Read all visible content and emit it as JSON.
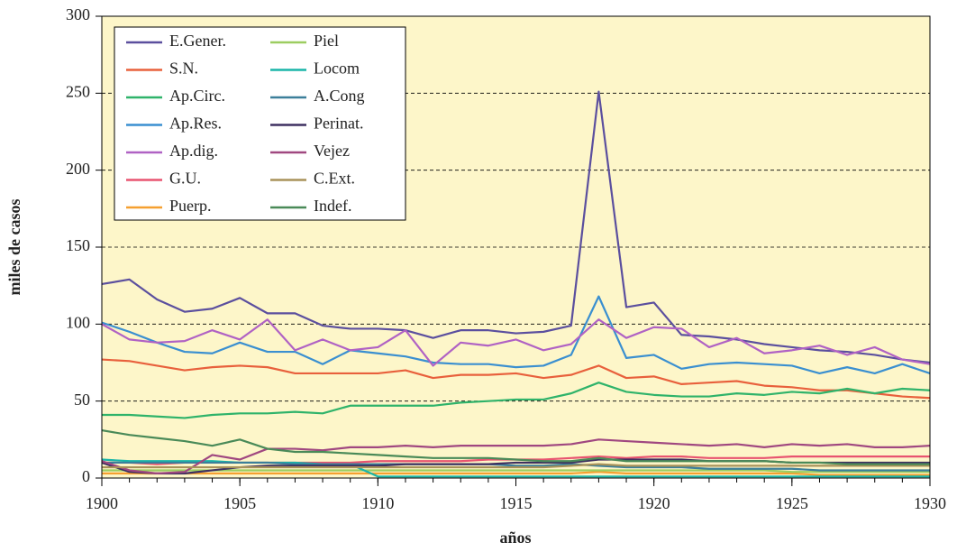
{
  "chart_data": {
    "type": "line",
    "x_label": "años",
    "y_label": "miles de casos",
    "x": [
      1900,
      1901,
      1902,
      1903,
      1904,
      1905,
      1906,
      1907,
      1908,
      1909,
      1910,
      1911,
      1912,
      1913,
      1914,
      1915,
      1916,
      1917,
      1918,
      1919,
      1920,
      1921,
      1922,
      1923,
      1924,
      1925,
      1926,
      1927,
      1928,
      1929,
      1930
    ],
    "xlim": [
      1900,
      1930
    ],
    "xticks": [
      1900,
      1905,
      1910,
      1915,
      1920,
      1925,
      1930
    ],
    "ylim": [
      0,
      300
    ],
    "yticks": [
      0,
      50,
      100,
      150,
      200,
      250,
      300
    ],
    "grid": true,
    "legend": "upper left",
    "series": [
      {
        "name": "E.Gener.",
        "color": "#5b4f9e",
        "values": [
          126,
          129,
          116,
          108,
          110,
          117,
          107,
          107,
          99,
          97,
          97,
          96,
          91,
          96,
          96,
          94,
          95,
          99,
          251,
          111,
          114,
          93,
          92,
          90,
          87,
          85,
          83,
          82,
          80,
          77,
          75
        ]
      },
      {
        "name": "S.N.",
        "color": "#e8603c",
        "values": [
          77,
          76,
          73,
          70,
          72,
          73,
          72,
          68,
          68,
          68,
          68,
          70,
          65,
          67,
          67,
          68,
          65,
          67,
          73,
          65,
          66,
          61,
          62,
          63,
          60,
          59,
          57,
          57,
          55,
          53,
          52
        ]
      },
      {
        "name": "Ap.Circ.",
        "color": "#2fb36a",
        "values": [
          41,
          41,
          40,
          39,
          41,
          42,
          42,
          43,
          42,
          47,
          47,
          47,
          47,
          49,
          50,
          51,
          51,
          55,
          62,
          56,
          54,
          53,
          53,
          55,
          54,
          56,
          55,
          58,
          55,
          58,
          57
        ]
      },
      {
        "name": "Ap.Res.",
        "color": "#3a8fd0",
        "values": [
          101,
          95,
          88,
          82,
          81,
          88,
          82,
          82,
          74,
          83,
          81,
          79,
          75,
          74,
          74,
          72,
          73,
          80,
          118,
          78,
          80,
          71,
          74,
          75,
          74,
          73,
          68,
          72,
          68,
          74,
          68
        ]
      },
      {
        "name": "Ap.dig.",
        "color": "#b062c4",
        "values": [
          100,
          90,
          88,
          89,
          96,
          90,
          103,
          83,
          90,
          83,
          85,
          96,
          73,
          88,
          86,
          90,
          83,
          87,
          103,
          91,
          98,
          97,
          85,
          91,
          81,
          83,
          86,
          80,
          85,
          77,
          74
        ]
      },
      {
        "name": "G.U.",
        "color": "#e85470",
        "values": [
          10,
          10,
          9,
          10,
          10,
          10,
          10,
          10,
          10,
          10,
          11,
          11,
          11,
          11,
          12,
          12,
          12,
          13,
          14,
          13,
          14,
          14,
          13,
          13,
          13,
          14,
          14,
          14,
          14,
          14,
          14
        ]
      },
      {
        "name": "Puerp.",
        "color": "#f5a030",
        "values": [
          3,
          3,
          3,
          3,
          3,
          3,
          3,
          3,
          3,
          3,
          3,
          3,
          3,
          3,
          3,
          3,
          3,
          3,
          4,
          3,
          3,
          3,
          3,
          3,
          3,
          3,
          2,
          2,
          2,
          2,
          2
        ]
      },
      {
        "name": "Piel",
        "color": "#9ccd60",
        "values": [
          5,
          5,
          5,
          5,
          5,
          5,
          5,
          5,
          5,
          5,
          5,
          5,
          5,
          5,
          5,
          5,
          5,
          5,
          5,
          5,
          5,
          5,
          5,
          5,
          5,
          4,
          4,
          4,
          4,
          4,
          4
        ]
      },
      {
        "name": "Locom",
        "color": "#1ab5a8",
        "values": [
          12,
          11,
          11,
          11,
          11,
          10,
          10,
          10,
          9,
          9,
          1,
          1,
          1,
          1,
          1,
          1,
          1,
          1,
          1,
          1,
          1,
          1,
          1,
          1,
          1,
          1,
          1,
          1,
          1,
          1,
          1
        ]
      },
      {
        "name": "A.Cong",
        "color": "#3c7f9a",
        "values": [
          10,
          10,
          10,
          10,
          10,
          10,
          10,
          9,
          9,
          9,
          9,
          9,
          9,
          9,
          9,
          8,
          8,
          9,
          8,
          7,
          7,
          7,
          6,
          6,
          6,
          6,
          5,
          5,
          5,
          5,
          5
        ]
      },
      {
        "name": "Perinat.",
        "color": "#3e3060",
        "values": [
          10,
          4,
          3,
          3,
          5,
          7,
          8,
          8,
          8,
          8,
          8,
          9,
          9,
          9,
          9,
          10,
          10,
          10,
          12,
          12,
          12,
          12,
          11,
          11,
          11,
          10,
          10,
          10,
          10,
          10,
          10
        ]
      },
      {
        "name": "Vejez",
        "color": "#a04880",
        "values": [
          11,
          5,
          3,
          4,
          15,
          12,
          19,
          19,
          18,
          20,
          20,
          21,
          20,
          21,
          21,
          21,
          21,
          22,
          25,
          24,
          23,
          22,
          21,
          22,
          20,
          22,
          21,
          22,
          20,
          20,
          21
        ]
      },
      {
        "name": "C.Ext.",
        "color": "#a8925a",
        "values": [
          7,
          7,
          7,
          7,
          7,
          7,
          7,
          7,
          7,
          7,
          7,
          7,
          7,
          7,
          7,
          7,
          7,
          8,
          9,
          8,
          8,
          8,
          8,
          8,
          8,
          8,
          8,
          8,
          8,
          8,
          8
        ]
      },
      {
        "name": "Indef.",
        "color": "#4a8a58",
        "values": [
          31,
          28,
          26,
          24,
          21,
          25,
          19,
          17,
          17,
          16,
          15,
          14,
          13,
          13,
          13,
          12,
          11,
          11,
          13,
          11,
          11,
          11,
          11,
          11,
          11,
          10,
          10,
          9,
          9,
          9,
          9
        ]
      }
    ]
  }
}
